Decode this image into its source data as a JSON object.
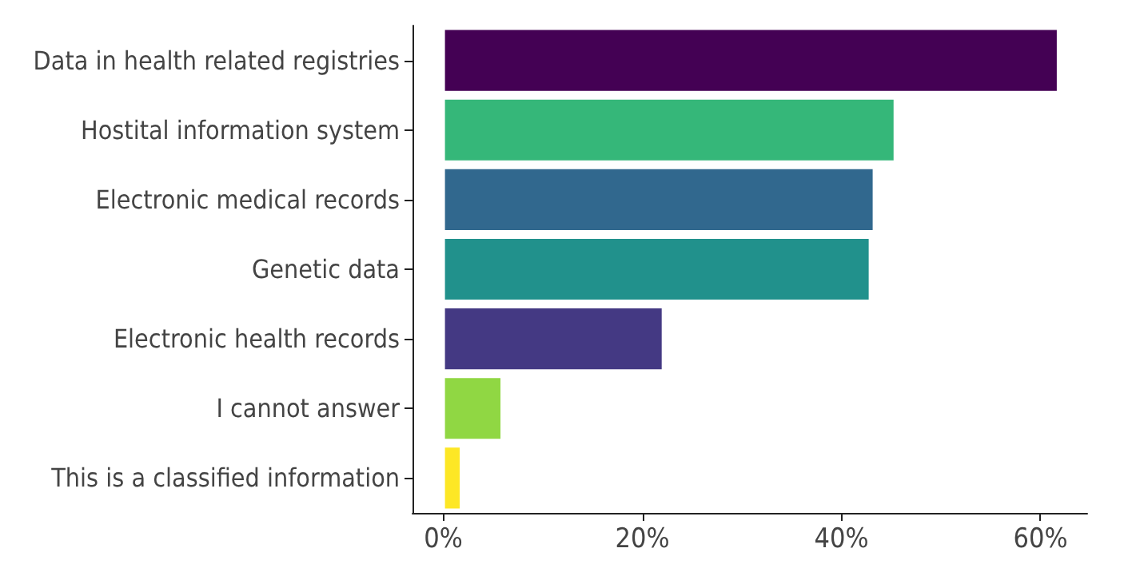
{
  "chart_data": {
    "type": "bar",
    "orientation": "horizontal",
    "categories": [
      "Data in health related registries",
      "Hostital information system",
      "Electronic medical records",
      "Genetic data",
      "Electronic health records",
      "I cannot answer",
      "This is a classified information"
    ],
    "values": [
      61.8,
      45.4,
      43.3,
      42.9,
      22.1,
      5.9,
      1.8
    ],
    "colors": [
      "#440154",
      "#35b779",
      "#31688e",
      "#21918c",
      "#443983",
      "#90d743",
      "#fde725"
    ],
    "xlim": [
      -3.1,
      64.7
    ],
    "xticks": [
      {
        "value": 0,
        "label": "0%"
      },
      {
        "value": 20,
        "label": "20%"
      },
      {
        "value": 40,
        "label": "40%"
      },
      {
        "value": 60,
        "label": "60%"
      }
    ],
    "grid": false
  }
}
